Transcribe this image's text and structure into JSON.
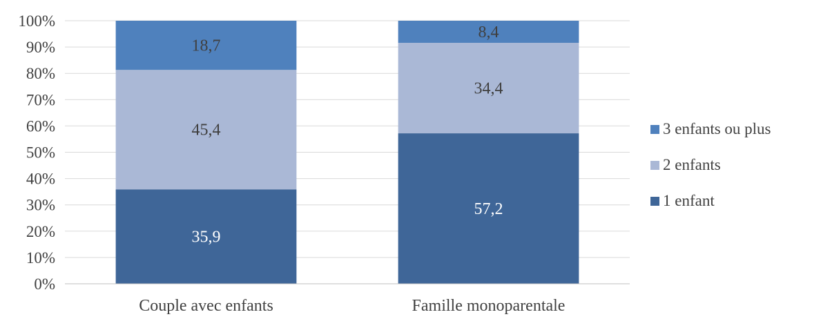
{
  "chart_data": {
    "type": "bar",
    "stacked": true,
    "percent": true,
    "categories": [
      "Couple avec enfants",
      "Famille monoparentale"
    ],
    "series": [
      {
        "name": "1 enfant",
        "values": [
          35.9,
          57.2
        ],
        "labels": [
          "35,9",
          "57,2"
        ],
        "color": "#3f6698",
        "label_color": "#ffffff"
      },
      {
        "name": "2 enfants",
        "values": [
          45.4,
          34.4
        ],
        "labels": [
          "45,4",
          "34,4"
        ],
        "color": "#aab8d6",
        "label_color": "#404040"
      },
      {
        "name": "3 enfants ou plus",
        "values": [
          18.7,
          8.4
        ],
        "labels": [
          "18,7",
          "8,4"
        ],
        "color": "#4f81bd",
        "label_color": "#404040"
      }
    ],
    "ylim": [
      0,
      100
    ],
    "yticks": [
      "0%",
      "10%",
      "20%",
      "30%",
      "40%",
      "50%",
      "60%",
      "70%",
      "80%",
      "90%",
      "100%"
    ],
    "grid": true,
    "legend_position": "right",
    "legend_order": [
      "3 enfants ou plus",
      "2 enfants",
      "1 enfant"
    ]
  }
}
